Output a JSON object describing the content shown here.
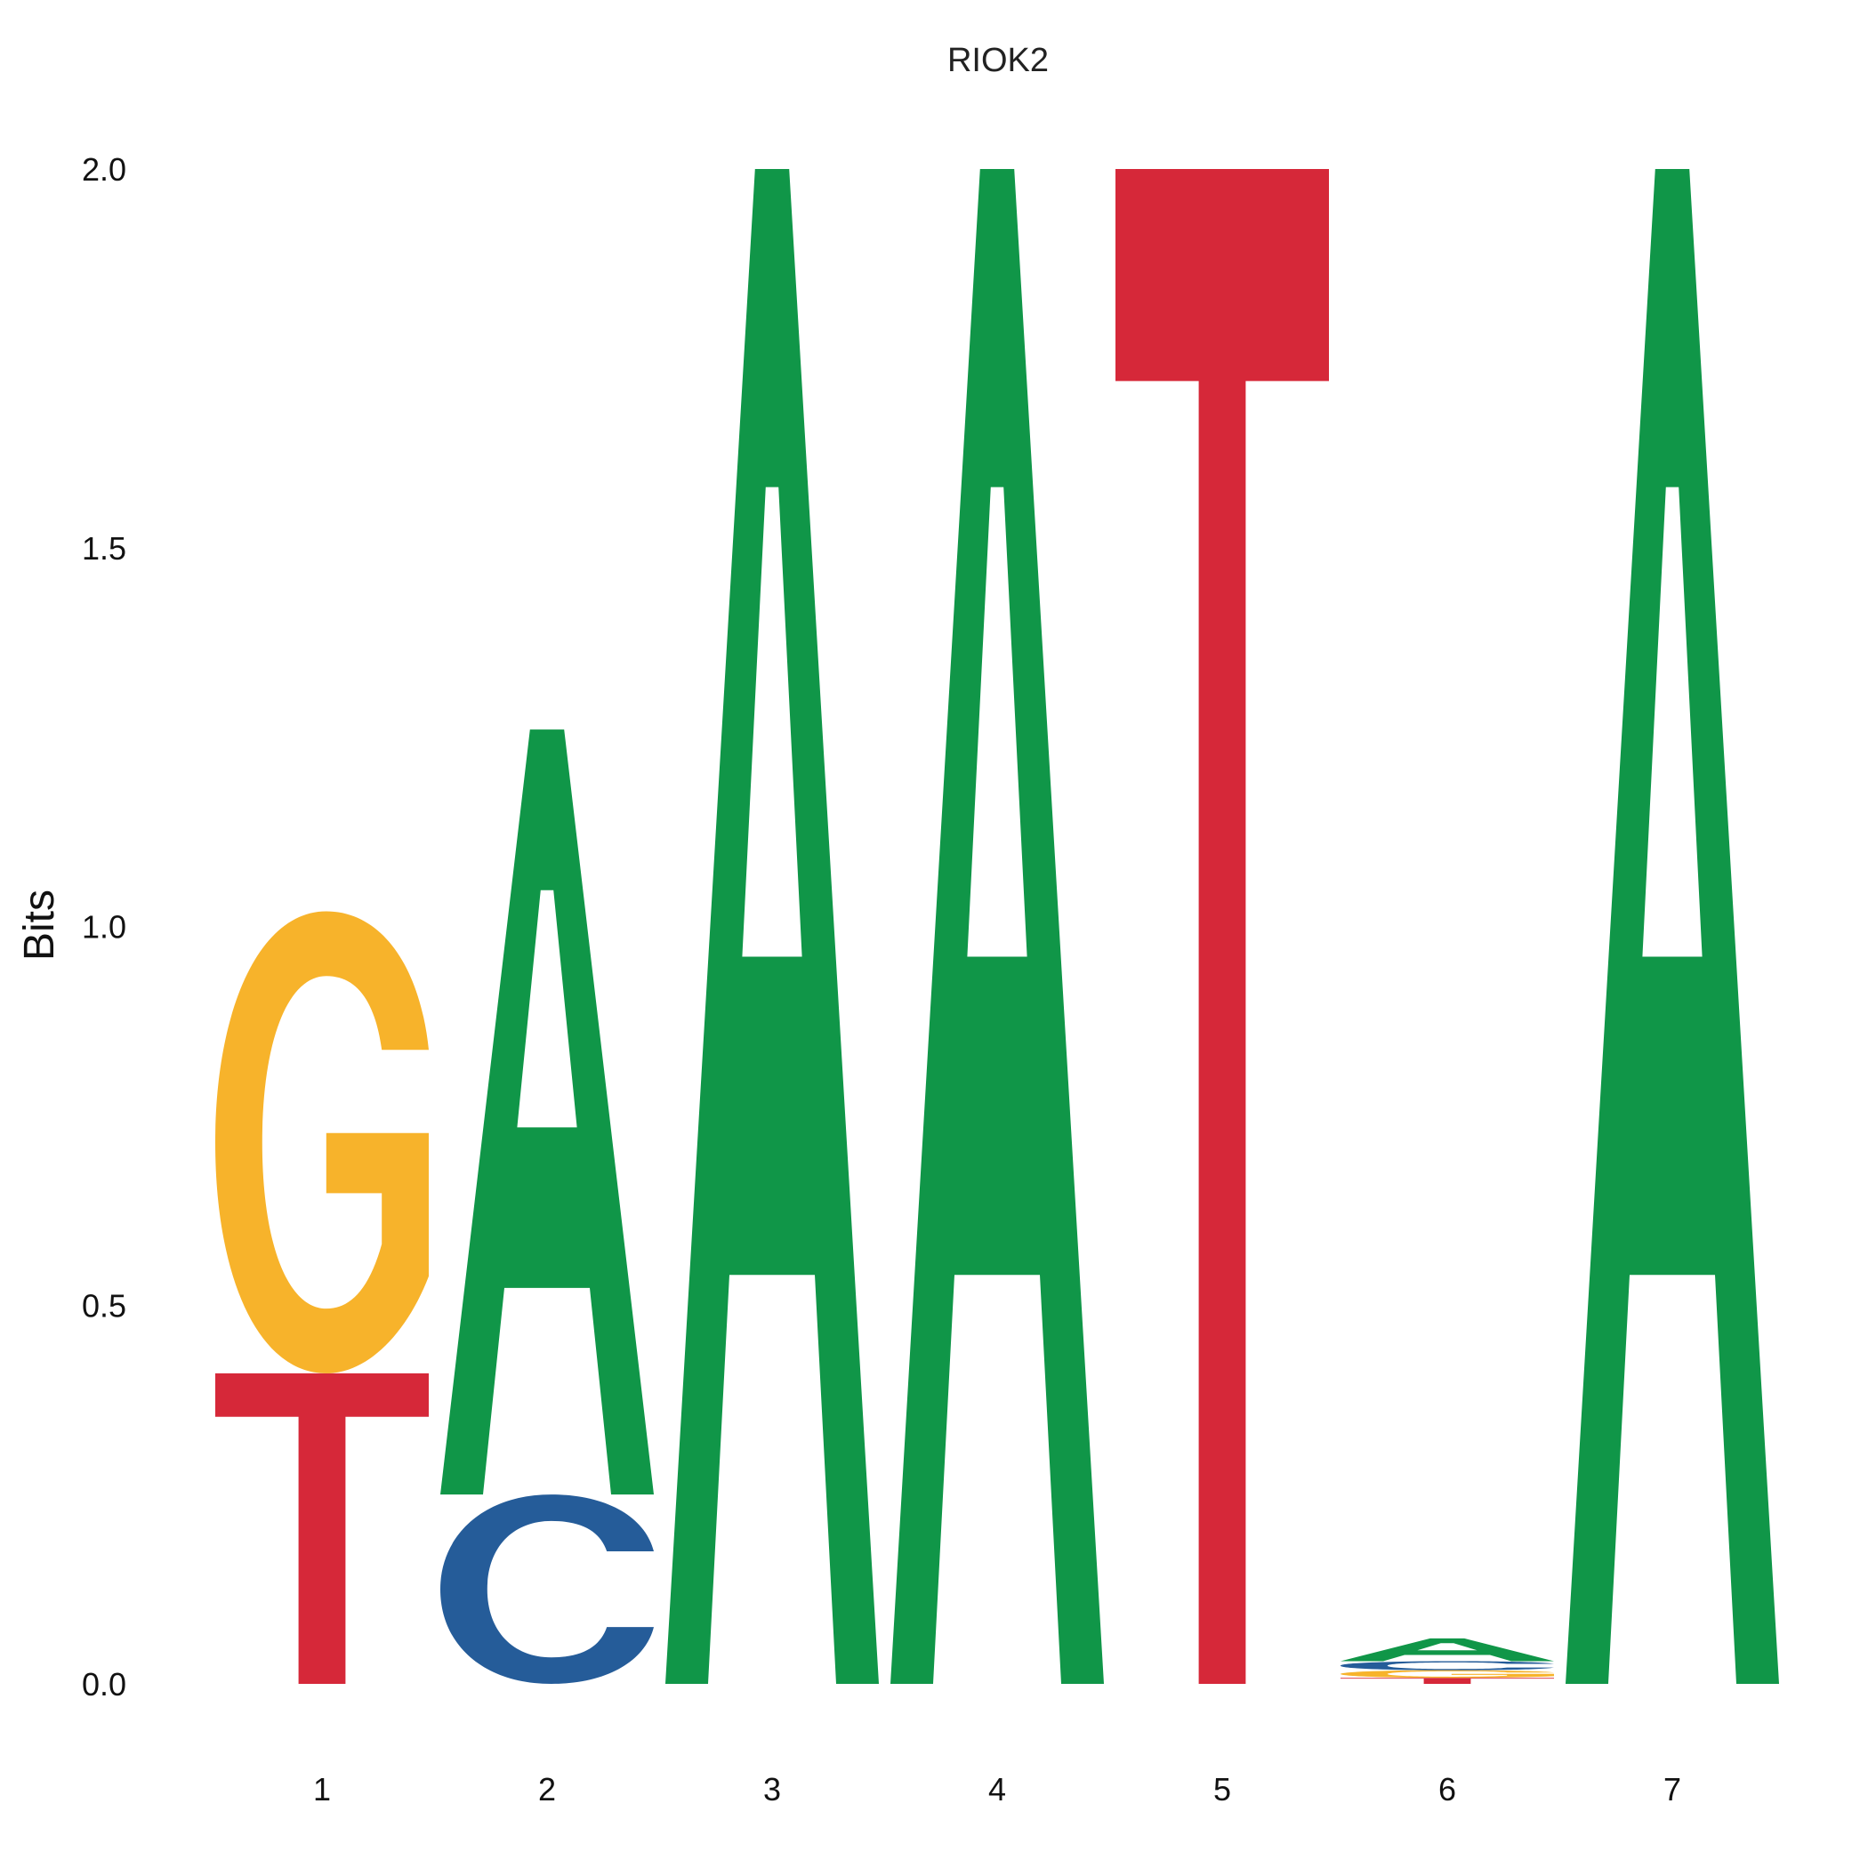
{
  "chart_data": {
    "type": "sequence-logo",
    "title": "RIOK2",
    "ylabel": "Bits",
    "xlabel": "",
    "ylim": [
      0,
      2
    ],
    "yticks": [
      "0.0",
      "0.5",
      "1.0",
      "1.5",
      "2.0"
    ],
    "positions": [
      "1",
      "2",
      "3",
      "4",
      "5",
      "6",
      "7"
    ],
    "colors": {
      "A": "#109648",
      "C": "#255C99",
      "G": "#F7B32B",
      "T": "#D62839"
    },
    "stacks": [
      [
        {
          "letter": "T",
          "bits": 0.41
        },
        {
          "letter": "G",
          "bits": 0.61
        }
      ],
      [
        {
          "letter": "C",
          "bits": 0.25
        },
        {
          "letter": "A",
          "bits": 1.01
        }
      ],
      [
        {
          "letter": "A",
          "bits": 2.0
        }
      ],
      [
        {
          "letter": "A",
          "bits": 2.0
        }
      ],
      [
        {
          "letter": "T",
          "bits": 2.0
        }
      ],
      [
        {
          "letter": "T",
          "bits": 0.008
        },
        {
          "letter": "G",
          "bits": 0.01
        },
        {
          "letter": "C",
          "bits": 0.012
        },
        {
          "letter": "A",
          "bits": 0.03
        }
      ],
      [
        {
          "letter": "A",
          "bits": 2.0
        }
      ]
    ]
  }
}
